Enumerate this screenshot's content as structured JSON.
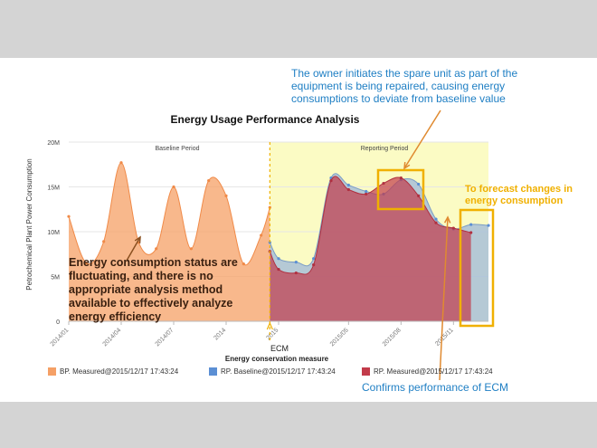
{
  "chart_data": {
    "type": "area",
    "title": "Energy Usage Performance Analysis",
    "xlabel": "Energy conservation measure",
    "ylabel": "Petrochemical Plant Power Consumption",
    "ylim": [
      0,
      20
    ],
    "y_ticks": [
      {
        "v": 0,
        "label": "0"
      },
      {
        "v": 5,
        "label": "5M"
      },
      {
        "v": 10,
        "label": "10M"
      },
      {
        "v": 15,
        "label": "15M"
      },
      {
        "v": 20,
        "label": "20M"
      }
    ],
    "x_ticks": [
      {
        "x": 0,
        "label": "2014/01"
      },
      {
        "x": 3,
        "label": "2014/04"
      },
      {
        "x": 6,
        "label": "2014/07"
      },
      {
        "x": 9,
        "label": "2014"
      },
      {
        "x": 12,
        "label": "2015"
      },
      {
        "x": 16,
        "label": "2015/05"
      },
      {
        "x": 19,
        "label": "2015/08"
      },
      {
        "x": 22,
        "label": "2015/11"
      }
    ],
    "period_labels": {
      "baseline": "Baseline Period",
      "reporting": "Reporting Period"
    },
    "reporting_start_x": 11.5,
    "grid": "horizontal",
    "legend_position": "bottom",
    "series": [
      {
        "name": "BP. Measured@2015/12/17 17:43:24",
        "color": "#f5a066",
        "x": [
          0,
          1,
          2,
          3,
          4,
          5,
          6,
          7,
          8,
          9,
          10,
          11,
          11.5
        ],
        "values": [
          11.7,
          6.5,
          8.9,
          17.7,
          8.8,
          8.1,
          15.0,
          8.1,
          15.7,
          14.0,
          6.4,
          9.6,
          12.7
        ]
      },
      {
        "name": "RP. Baseline@2015/12/17 17:43:24",
        "color": "#5b8fd4",
        "x": [
          11.5,
          12,
          13,
          14,
          15,
          16,
          17,
          18,
          19,
          20,
          21,
          22,
          23,
          24
        ],
        "values": [
          8.8,
          7.0,
          6.6,
          7.0,
          16.0,
          15.2,
          14.5,
          14.2,
          15.8,
          15.3,
          11.4,
          10.3,
          10.8,
          10.7
        ]
      },
      {
        "name": "RP. Measured@2015/12/17 17:43:24",
        "color": "#c23b4a",
        "x": [
          11.5,
          12,
          13,
          14,
          15,
          16,
          17,
          18,
          19,
          20,
          21,
          22,
          23
        ],
        "values": [
          7.8,
          5.8,
          5.4,
          6.3,
          15.7,
          14.7,
          14.2,
          15.4,
          16.0,
          14.0,
          11.0,
          10.4,
          9.9
        ]
      }
    ],
    "annotations": {
      "ecm": "ECM",
      "spare_unit": "The owner initiates the spare unit as part of the equipment is being repaired, causing energy consumptions to deviate from baseline value",
      "forecast": "To forecast changes in energy consumption",
      "fluctuating": "Energy consumption status are fluctuating, and there is no appropriate analysis method available to effectively analyze energy efficiency",
      "confirms": "Confirms performance of ECM"
    }
  }
}
